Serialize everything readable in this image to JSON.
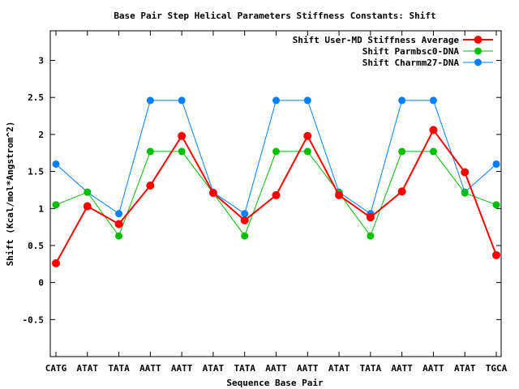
{
  "chart_data": {
    "type": "line",
    "title": "Base Pair Step Helical Parameters Stiffness Constants: Shift",
    "xlabel": "Sequence Base Pair",
    "ylabel": "Shift (Kcal/mol*Angstrom^2)",
    "categories": [
      "CATG",
      "ATAT",
      "TATA",
      "AATT",
      "AATT",
      "ATAT",
      "TATA",
      "AATT",
      "AATT",
      "ATAT",
      "TATA",
      "AATT",
      "AATT",
      "ATAT",
      "TGCA"
    ],
    "ylim": [
      -1,
      3.4
    ],
    "yticks": [
      "-0.5",
      "0",
      "0.5",
      "1",
      "1.5",
      "2",
      "2.5",
      "3"
    ],
    "grid": false,
    "legend_position": "top-right",
    "series": [
      {
        "name": "Shift User-MD Stiffness Average",
        "color": "#ff0000",
        "values": [
          0.26,
          1.03,
          0.79,
          1.31,
          1.98,
          1.21,
          0.84,
          1.18,
          1.98,
          1.18,
          0.88,
          1.23,
          2.06,
          1.49,
          0.37
        ]
      },
      {
        "name": "Shift Parmbsc0-DNA",
        "color": "#00c000",
        "values": [
          1.05,
          1.22,
          0.63,
          1.77,
          1.77,
          1.21,
          0.63,
          1.77,
          1.77,
          1.21,
          0.63,
          1.77,
          1.77,
          1.21,
          1.05
        ]
      },
      {
        "name": "Shift Charmm27-DNA",
        "color": "#0080ff",
        "values": [
          1.6,
          1.22,
          0.93,
          2.46,
          2.46,
          1.22,
          0.93,
          2.46,
          2.46,
          1.22,
          0.93,
          2.46,
          2.46,
          1.22,
          1.6
        ]
      }
    ]
  }
}
